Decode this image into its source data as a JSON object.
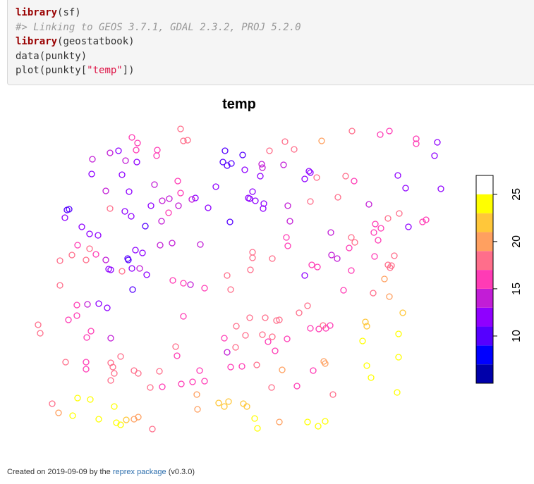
{
  "code": {
    "lines": [
      {
        "parts": [
          {
            "t": "library",
            "c": "kw"
          },
          {
            "t": "(sf)",
            "c": ""
          }
        ]
      },
      {
        "parts": [
          {
            "t": "#> Linking to GEOS 3.7.1, GDAL 2.3.2, PROJ 5.2.0",
            "c": "cm"
          }
        ]
      },
      {
        "parts": [
          {
            "t": "library",
            "c": "kw"
          },
          {
            "t": "(geostatbook)",
            "c": ""
          }
        ]
      },
      {
        "parts": [
          {
            "t": "data(punkty)",
            "c": ""
          }
        ]
      },
      {
        "parts": [
          {
            "t": "plot(punkty[",
            "c": ""
          },
          {
            "t": "\"temp\"",
            "c": "st"
          },
          {
            "t": "])",
            "c": ""
          }
        ]
      }
    ]
  },
  "chart_data": {
    "type": "scatter",
    "title": "temp",
    "legend_position": "right",
    "colorbar": {
      "breaks": [
        5,
        7,
        9,
        11,
        13,
        15,
        17,
        19,
        21,
        23,
        25,
        27
      ],
      "colors": [
        "#0000aa",
        "#0000ff",
        "#5500ff",
        "#8f00ff",
        "#c21dd6",
        "#ff3bb5",
        "#ff6e8b",
        "#ffa060",
        "#ffc73a",
        "#ffff00"
      ],
      "ticks": [
        "10",
        "15",
        "20",
        "25"
      ]
    },
    "points": [
      [
        187,
        195,
        16
      ],
      [
        195,
        203,
        16
      ],
      [
        256,
        183,
        17
      ],
      [
        260,
        200,
        17
      ],
      [
        266,
        199,
        17
      ],
      [
        193,
        213,
        16
      ],
      [
        223,
        213,
        16
      ],
      [
        222,
        221,
        16
      ],
      [
        131,
        226,
        13
      ],
      [
        156,
        217,
        13
      ],
      [
        168,
        214,
        12
      ],
      [
        178,
        228,
        13
      ],
      [
        194,
        230,
        12
      ],
      [
        130,
        247,
        12
      ],
      [
        173,
        248,
        12
      ],
      [
        219,
        262,
        14
      ],
      [
        252,
        257,
        16
      ],
      [
        183,
        272,
        12
      ],
      [
        150,
        271,
        13
      ],
      [
        256,
        274,
        15
      ],
      [
        272,
        283,
        14
      ],
      [
        277,
        281,
        12
      ],
      [
        240,
        282,
        13
      ],
      [
        230,
        285,
        14
      ],
      [
        253,
        292,
        13
      ],
      [
        214,
        292,
        12
      ],
      [
        239,
        302,
        15
      ],
      [
        156,
        296,
        17
      ],
      [
        177,
        300,
        12
      ],
      [
        186,
        307,
        12
      ],
      [
        229,
        314,
        14
      ],
      [
        206,
        321,
        10
      ],
      [
        127,
        332,
        12
      ],
      [
        139,
        334,
        12
      ],
      [
        116,
        322,
        11
      ],
      [
        95,
        298,
        10
      ],
      [
        98,
        297,
        10
      ],
      [
        92,
        309,
        12
      ],
      [
        110,
        348,
        16
      ],
      [
        136,
        361,
        16
      ],
      [
        127,
        353,
        17
      ],
      [
        150,
        369,
        14
      ],
      [
        122,
        369,
        18
      ],
      [
        102,
        362,
        17
      ],
      [
        85,
        370,
        18
      ],
      [
        154,
        382,
        12
      ],
      [
        157,
        383,
        12
      ],
      [
        181,
        367,
        9
      ],
      [
        182,
        369,
        10
      ],
      [
        192,
        355,
        11
      ],
      [
        202,
        359,
        12
      ],
      [
        227,
        348,
        14
      ],
      [
        244,
        345,
        14
      ],
      [
        284,
        347,
        13
      ],
      [
        187,
        381,
        11
      ],
      [
        198,
        381,
        14
      ],
      [
        208,
        390,
        11
      ],
      [
        173,
        385,
        17
      ],
      [
        124,
        432,
        13
      ],
      [
        140,
        431,
        12
      ],
      [
        152,
        437,
        11
      ],
      [
        109,
        433,
        16
      ],
      [
        109,
        448,
        16
      ],
      [
        97,
        454,
        15
      ],
      [
        85,
        405,
        17
      ],
      [
        54,
        461,
        17
      ],
      [
        57,
        473,
        17
      ],
      [
        188,
        411,
        10
      ],
      [
        245,
        398,
        15
      ],
      [
        260,
        402,
        15
      ],
      [
        270,
        404,
        14
      ],
      [
        290,
        409,
        15
      ],
      [
        260,
        449,
        16
      ],
      [
        319,
        214,
        10
      ],
      [
        316,
        230,
        10
      ],
      [
        322,
        235,
        10
      ],
      [
        328,
        232,
        10
      ],
      [
        344,
        220,
        10
      ],
      [
        347,
        241,
        12
      ],
      [
        371,
        233,
        13
      ],
      [
        372,
        238,
        13
      ],
      [
        382,
        214,
        17
      ],
      [
        404,
        201,
        17
      ],
      [
        417,
        212,
        17
      ],
      [
        402,
        234,
        14
      ],
      [
        369,
        250,
        11
      ],
      [
        306,
        265,
        12
      ],
      [
        358,
        272,
        12
      ],
      [
        352,
        281,
        11
      ],
      [
        354,
        282,
        11
      ],
      [
        362,
        285,
        11
      ],
      [
        374,
        289,
        12
      ],
      [
        373,
        296,
        12
      ],
      [
        295,
        295,
        11
      ],
      [
        326,
        315,
        10
      ],
      [
        408,
        292,
        14
      ],
      [
        411,
        314,
        14
      ],
      [
        438,
        243,
        12
      ],
      [
        440,
        245,
        12
      ],
      [
        449,
        252,
        17
      ],
      [
        432,
        254,
        11
      ],
      [
        440,
        286,
        17
      ],
      [
        406,
        337,
        16
      ],
      [
        408,
        349,
        16
      ],
      [
        358,
        358,
        18
      ],
      [
        358,
        366,
        18
      ],
      [
        386,
        367,
        18
      ],
      [
        355,
        383,
        18
      ],
      [
        322,
        391,
        18
      ],
      [
        327,
        411,
        17
      ],
      [
        424,
        444,
        17
      ],
      [
        436,
        434,
        17
      ],
      [
        442,
        376,
        16
      ],
      [
        450,
        379,
        16
      ],
      [
        432,
        391,
        12
      ],
      [
        456,
        200,
        20
      ],
      [
        499,
        186,
        17
      ],
      [
        539,
        191,
        16
      ],
      [
        552,
        186,
        16
      ],
      [
        590,
        197,
        16
      ],
      [
        590,
        204,
        16
      ],
      [
        620,
        202,
        12
      ],
      [
        616,
        221,
        11
      ],
      [
        490,
        250,
        17
      ],
      [
        502,
        257,
        16
      ],
      [
        564,
        249,
        12
      ],
      [
        575,
        267,
        12
      ],
      [
        625,
        268,
        11
      ],
      [
        479,
        280,
        17
      ],
      [
        523,
        290,
        13
      ],
      [
        550,
        310,
        17
      ],
      [
        566,
        303,
        17
      ],
      [
        579,
        322,
        12
      ],
      [
        599,
        315,
        16
      ],
      [
        604,
        312,
        16
      ],
      [
        532,
        318,
        16
      ],
      [
        540,
        324,
        16
      ],
      [
        530,
        330,
        16
      ],
      [
        536,
        341,
        16
      ],
      [
        469,
        330,
        14
      ],
      [
        498,
        337,
        17
      ],
      [
        503,
        344,
        17
      ],
      [
        495,
        352,
        16
      ],
      [
        531,
        364,
        16
      ],
      [
        559,
        363,
        17
      ],
      [
        470,
        362,
        14
      ],
      [
        478,
        367,
        14
      ],
      [
        498,
        384,
        16
      ],
      [
        487,
        412,
        15
      ],
      [
        550,
        376,
        17
      ],
      [
        553,
        380,
        18
      ],
      [
        555,
        377,
        18
      ],
      [
        545,
        396,
        20
      ],
      [
        529,
        416,
        17
      ],
      [
        552,
        421,
        19
      ],
      [
        571,
        444,
        22
      ],
      [
        518,
        457,
        21
      ],
      [
        520,
        463,
        21
      ],
      [
        565,
        474,
        24
      ],
      [
        514,
        484,
        23
      ],
      [
        565,
        507,
        24
      ],
      [
        520,
        519,
        24
      ],
      [
        526,
        536,
        24
      ],
      [
        563,
        557,
        24
      ],
      [
        354,
        451,
        17
      ],
      [
        376,
        451,
        17
      ],
      [
        392,
        455,
        17
      ],
      [
        396,
        454,
        17
      ],
      [
        335,
        463,
        17
      ],
      [
        348,
        476,
        17
      ],
      [
        372,
        475,
        17
      ],
      [
        380,
        485,
        16
      ],
      [
        386,
        478,
        17
      ],
      [
        390,
        498,
        16
      ],
      [
        318,
        480,
        15
      ],
      [
        322,
        500,
        13
      ],
      [
        334,
        493,
        17
      ],
      [
        407,
        481,
        16
      ],
      [
        440,
        466,
        16
      ],
      [
        452,
        467,
        16
      ],
      [
        458,
        462,
        17
      ],
      [
        462,
        466,
        16
      ],
      [
        468,
        462,
        16
      ],
      [
        459,
        513,
        20
      ],
      [
        461,
        516,
        20
      ],
      [
        444,
        526,
        16
      ],
      [
        400,
        525,
        20
      ],
      [
        364,
        518,
        17
      ],
      [
        343,
        520,
        15
      ],
      [
        327,
        521,
        16
      ],
      [
        283,
        526,
        15
      ],
      [
        290,
        541,
        15
      ],
      [
        273,
        542,
        16
      ],
      [
        257,
        545,
        16
      ],
      [
        249,
        492,
        17
      ],
      [
        251,
        505,
        16
      ],
      [
        230,
        549,
        15
      ],
      [
        226,
        527,
        17
      ],
      [
        213,
        550,
        17
      ],
      [
        196,
        530,
        17
      ],
      [
        190,
        526,
        17
      ],
      [
        171,
        506,
        18
      ],
      [
        157,
        515,
        18
      ],
      [
        160,
        521,
        18
      ],
      [
        162,
        530,
        18
      ],
      [
        157,
        540,
        18
      ],
      [
        129,
        470,
        16
      ],
      [
        123,
        479,
        16
      ],
      [
        157,
        480,
        14
      ],
      [
        122,
        514,
        16
      ],
      [
        122,
        524,
        16
      ],
      [
        93,
        514,
        17
      ],
      [
        74,
        573,
        18
      ],
      [
        83,
        586,
        19
      ],
      [
        103,
        590,
        23
      ],
      [
        110,
        565,
        24
      ],
      [
        128,
        567,
        24
      ],
      [
        162,
        577,
        24
      ],
      [
        140,
        595,
        24
      ],
      [
        165,
        600,
        24
      ],
      [
        171,
        603,
        23
      ],
      [
        179,
        596,
        22
      ],
      [
        190,
        595,
        20
      ],
      [
        196,
        592,
        20
      ],
      [
        216,
        609,
        17
      ],
      [
        279,
        560,
        19
      ],
      [
        280,
        581,
        20
      ],
      [
        310,
        572,
        21
      ],
      [
        318,
        577,
        21
      ],
      [
        324,
        570,
        21
      ],
      [
        345,
        573,
        21
      ],
      [
        350,
        577,
        22
      ],
      [
        385,
        550,
        18
      ],
      [
        421,
        548,
        16
      ],
      [
        472,
        560,
        17
      ],
      [
        361,
        594,
        24
      ],
      [
        365,
        608,
        24
      ],
      [
        396,
        599,
        20
      ],
      [
        436,
        599,
        24
      ],
      [
        451,
        605,
        24
      ],
      [
        461,
        598,
        24
      ]
    ]
  },
  "footer": {
    "prefix": "Created on 2019-09-09 by the ",
    "link": "reprex package",
    "suffix": " (v0.3.0)"
  }
}
